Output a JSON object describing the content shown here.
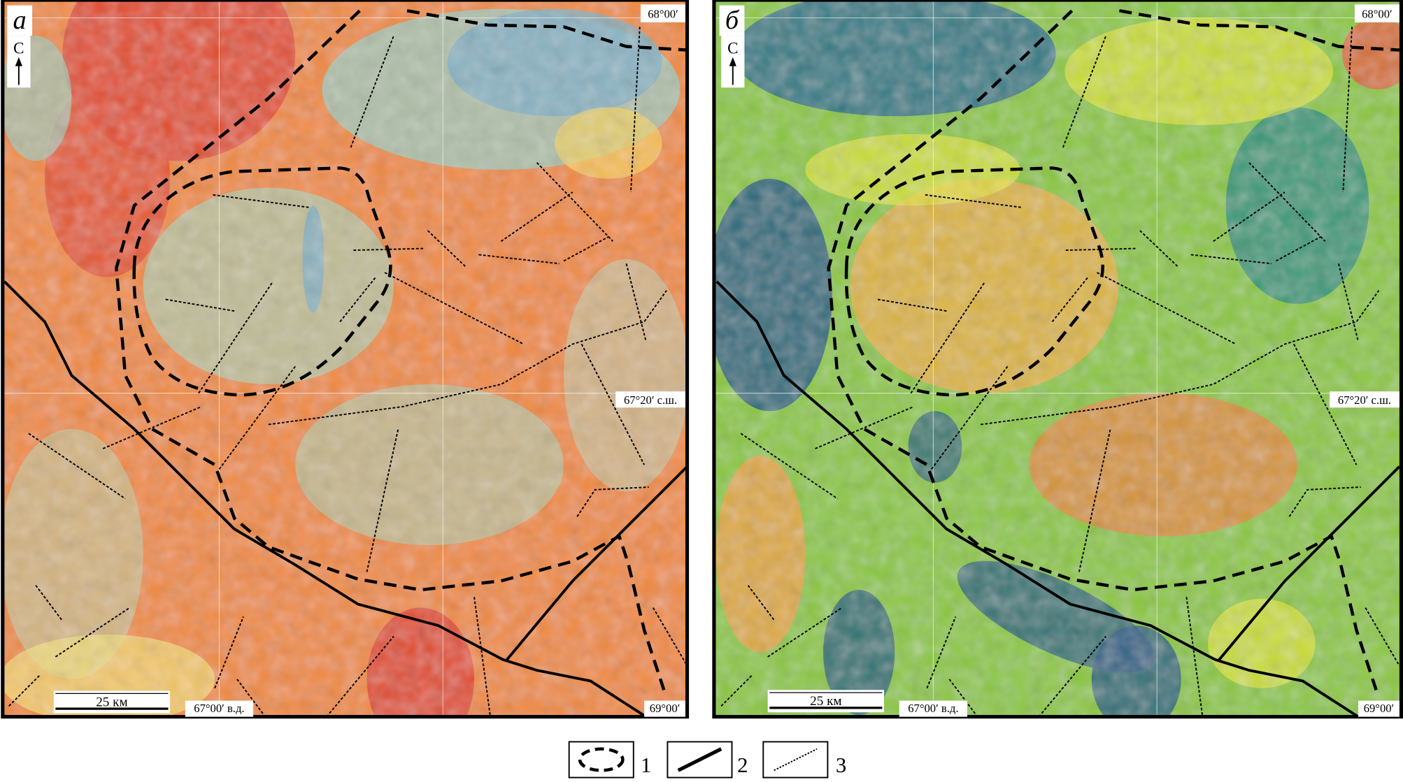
{
  "figure": {
    "panels": [
      {
        "letter": "а",
        "north_label": "С",
        "lat_top": "68°00′",
        "lat_mid": "67°20′ с.ш.",
        "lon_left": "67°00′ в.д.",
        "lon_right": "69°00′",
        "scale_label": "25 км",
        "palette": [
          "#e0401e",
          "#f07a2a",
          "#f6c24a",
          "#f3e27a",
          "#a9c4b6",
          "#7fb0c8"
        ],
        "icons": [
          "north-arrow-icon",
          "scale-bar-icon"
        ]
      },
      {
        "letter": "б",
        "north_label": "С",
        "lat_top": "68°00′",
        "lat_mid": "67°20′ с.ш.",
        "lon_left": "67°00′ в.д.",
        "lon_right": "69°00′",
        "scale_label": "25 км",
        "palette": [
          "#0d5a8a",
          "#1d8f8a",
          "#5fbf4a",
          "#e6e62a",
          "#f2a23a",
          "#e0662a"
        ],
        "icons": [
          "north-arrow-icon",
          "scale-bar-icon"
        ]
      }
    ],
    "legend": [
      {
        "symbol": "dashed-ring-icon",
        "label": "1"
      },
      {
        "symbol": "solid-line-icon",
        "label": "2"
      },
      {
        "symbol": "dotted-line-icon",
        "label": "3"
      }
    ]
  }
}
